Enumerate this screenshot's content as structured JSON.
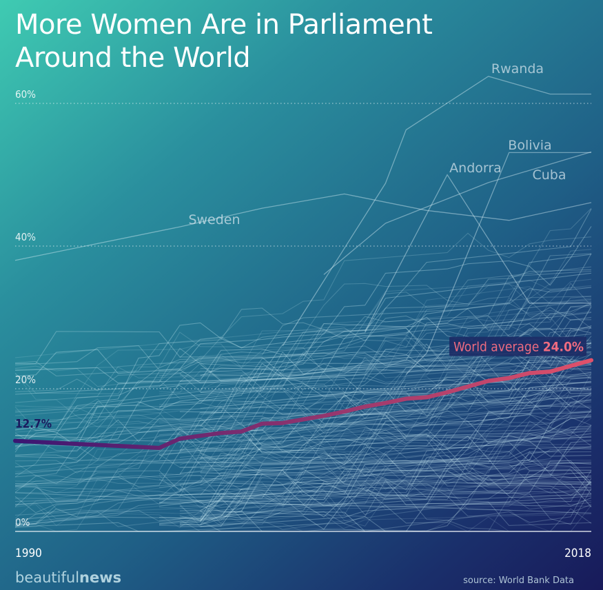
{
  "title_line1": "More Women Are in Parliament",
  "title_line2": "Around the World",
  "brand": {
    "prefix": "beautiful",
    "suffix": "news"
  },
  "source": "source: World Bank Data",
  "colors": {
    "avg_start": "#3a1672",
    "avg_end": "#e0516a",
    "country_line": "#cfeff5"
  },
  "chart_data": {
    "type": "line",
    "x_range": [
      1990,
      2018
    ],
    "y_range": [
      0,
      62
    ],
    "y_ticks": [
      {
        "value": 0,
        "label": "0%"
      },
      {
        "value": 20,
        "label": "20%"
      },
      {
        "value": 40,
        "label": "40%"
      },
      {
        "value": 60,
        "label": "60%"
      }
    ],
    "x_tick_labels": [
      {
        "year": 1990,
        "label": "1990"
      },
      {
        "year": 2018,
        "label": "2018"
      }
    ],
    "world_average": {
      "start_label": "12.7%",
      "end_text": "World average",
      "end_value": "24.0%",
      "points": [
        [
          1990,
          12.7
        ],
        [
          1997,
          11.7
        ],
        [
          1998,
          13.0
        ],
        [
          1999,
          13.4
        ],
        [
          2000,
          13.8
        ],
        [
          2001,
          14.0
        ],
        [
          2002,
          15.1
        ],
        [
          2003,
          15.2
        ],
        [
          2004,
          15.7
        ],
        [
          2005,
          16.2
        ],
        [
          2006,
          16.8
        ],
        [
          2007,
          17.5
        ],
        [
          2008,
          18.0
        ],
        [
          2009,
          18.6
        ],
        [
          2010,
          18.8
        ],
        [
          2011,
          19.5
        ],
        [
          2012,
          20.3
        ],
        [
          2013,
          21.1
        ],
        [
          2014,
          21.5
        ],
        [
          2015,
          22.2
        ],
        [
          2016,
          22.4
        ],
        [
          2017,
          23.2
        ],
        [
          2018,
          24.0
        ]
      ]
    },
    "labeled_countries": [
      {
        "name": "Rwanda",
        "points": [
          [
            2003,
            26
          ],
          [
            2008,
            48.8
          ],
          [
            2009,
            56.3
          ],
          [
            2013,
            63.8
          ],
          [
            2016,
            61.3
          ],
          [
            2018,
            61.3
          ]
        ]
      },
      {
        "name": "Bolivia",
        "points": [
          [
            2009,
            22
          ],
          [
            2010,
            25
          ],
          [
            2014,
            53.1
          ],
          [
            2018,
            53.1
          ]
        ]
      },
      {
        "name": "Andorra",
        "points": [
          [
            2007,
            28
          ],
          [
            2011,
            50
          ],
          [
            2015,
            32
          ],
          [
            2018,
            32
          ]
        ]
      },
      {
        "name": "Cuba",
        "points": [
          [
            2005,
            36
          ],
          [
            2008,
            43.2
          ],
          [
            2013,
            48.9
          ],
          [
            2018,
            53.2
          ]
        ]
      },
      {
        "name": "Sweden",
        "points": [
          [
            1990,
            38
          ],
          [
            1998,
            42.7
          ],
          [
            2002,
            45.3
          ],
          [
            2006,
            47.3
          ],
          [
            2010,
            45
          ],
          [
            2014,
            43.6
          ],
          [
            2018,
            46.1
          ]
        ]
      }
    ]
  }
}
